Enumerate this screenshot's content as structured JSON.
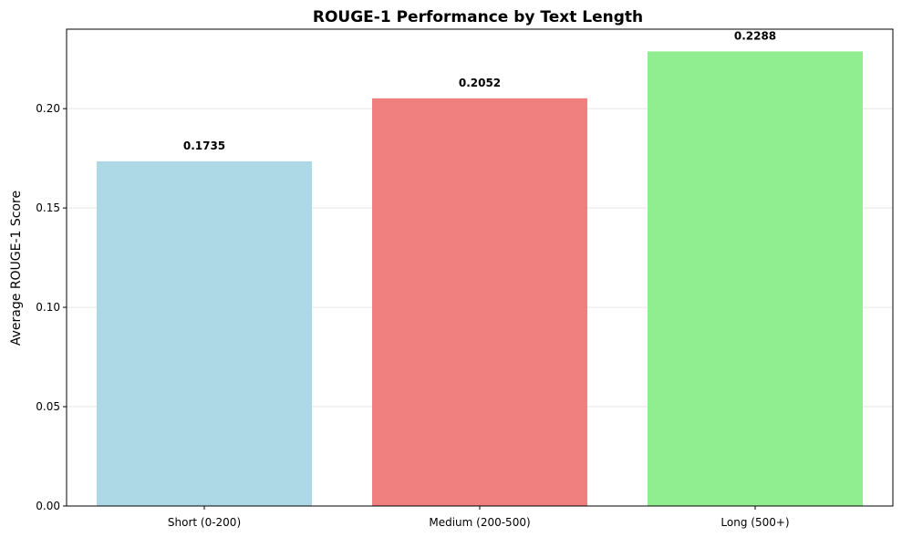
{
  "chart_data": {
    "type": "bar",
    "title": "ROUGE-1 Performance by Text Length",
    "xlabel": "",
    "ylabel": "Average ROUGE-1 Score",
    "categories": [
      "Short (0-200)",
      "Medium (200-500)",
      "Long (500+)"
    ],
    "values": [
      0.1735,
      0.2052,
      0.2288
    ],
    "value_labels": [
      "0.1735",
      "0.2052",
      "0.2288"
    ],
    "colors": [
      "#add8e6",
      "#f08080",
      "#90ee90"
    ],
    "ylim": [
      0,
      0.24
    ],
    "yticks": [
      0.0,
      0.05,
      0.1,
      0.15,
      0.2
    ],
    "ytick_labels": [
      "0.00",
      "0.05",
      "0.10",
      "0.15",
      "0.20"
    ],
    "grid": "y-axis only",
    "legend": "none"
  }
}
